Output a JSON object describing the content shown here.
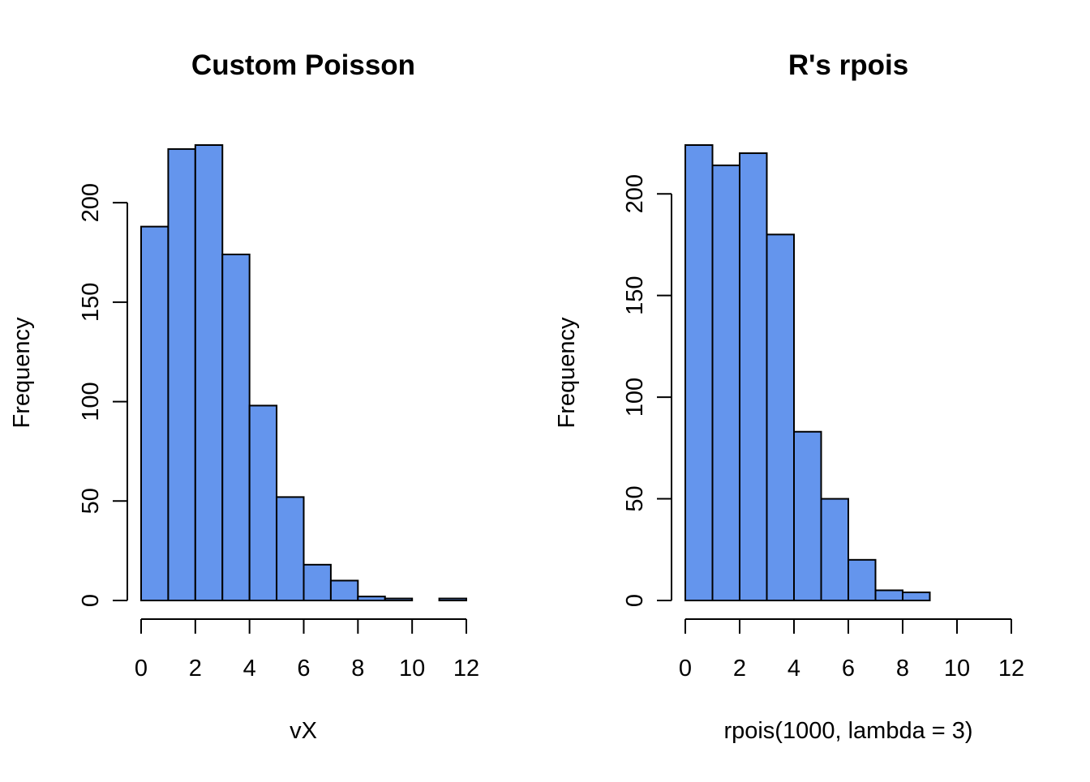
{
  "chart_data": [
    {
      "type": "bar",
      "title": "Custom Poisson",
      "xlabel": "vX",
      "ylabel": "Frequency",
      "bins": [
        [
          0,
          1
        ],
        [
          1,
          2
        ],
        [
          2,
          3
        ],
        [
          3,
          4
        ],
        [
          4,
          5
        ],
        [
          5,
          6
        ],
        [
          6,
          7
        ],
        [
          7,
          8
        ],
        [
          8,
          9
        ],
        [
          9,
          10
        ],
        [
          10,
          11
        ],
        [
          11,
          12
        ]
      ],
      "values": [
        188,
        227,
        229,
        174,
        98,
        52,
        18,
        10,
        2,
        1,
        0,
        1
      ],
      "xlim": [
        0,
        12
      ],
      "ylim": [
        0,
        229
      ],
      "xticks": [
        0,
        2,
        4,
        6,
        8,
        10,
        12
      ],
      "yticks": [
        0,
        50,
        100,
        150,
        200
      ],
      "bar_color": "#6495ED",
      "grid": false
    },
    {
      "type": "bar",
      "title": "R's rpois",
      "xlabel": "rpois(1000, lambda = 3)",
      "ylabel": "Frequency",
      "bins": [
        [
          0,
          1
        ],
        [
          1,
          2
        ],
        [
          2,
          3
        ],
        [
          3,
          4
        ],
        [
          4,
          5
        ],
        [
          5,
          6
        ],
        [
          6,
          7
        ],
        [
          7,
          8
        ],
        [
          8,
          9
        ],
        [
          9,
          10
        ],
        [
          10,
          11
        ],
        [
          11,
          12
        ]
      ],
      "values": [
        224,
        214,
        220,
        180,
        83,
        50,
        20,
        5,
        4,
        0,
        0,
        0
      ],
      "xlim": [
        0,
        12
      ],
      "ylim": [
        0,
        224
      ],
      "xticks": [
        0,
        2,
        4,
        6,
        8,
        10,
        12
      ],
      "yticks": [
        0,
        50,
        100,
        150,
        200
      ],
      "bar_color": "#6495ED",
      "grid": false
    }
  ]
}
